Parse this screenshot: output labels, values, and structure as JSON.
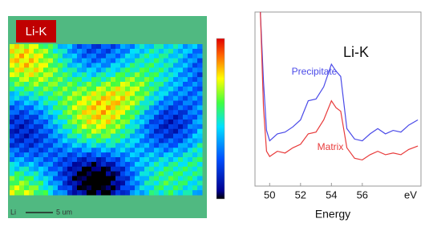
{
  "map": {
    "label": "Li-K",
    "scale_element": "Li",
    "scale_text": "5 um"
  },
  "chart_data": {
    "type": "line",
    "title": "Li-K",
    "xlabel": "Energy",
    "x_unit": "eV",
    "x": [
      49.4,
      49.6,
      49.8,
      50,
      50.5,
      51,
      51.5,
      52,
      52.5,
      53,
      53.5,
      54,
      54.3,
      54.6,
      55,
      55.5,
      56,
      56.5,
      57,
      57.5,
      58,
      58.5,
      59,
      59.6
    ],
    "series": [
      {
        "name": "Precipitate",
        "color": "#4a4ae8",
        "values": [
          100,
          60,
          32,
          26,
          30,
          31,
          34,
          38,
          49,
          50,
          57,
          70,
          66,
          63,
          33,
          27,
          26,
          30,
          33,
          30,
          32,
          31,
          35,
          38
        ]
      },
      {
        "name": "Matrix",
        "color": "#e83a3a",
        "values": [
          100,
          45,
          20,
          17,
          20,
          19,
          22,
          24,
          30,
          31,
          38,
          49,
          45,
          43,
          22,
          16,
          15,
          18,
          20,
          18,
          19,
          18,
          21,
          23
        ]
      }
    ],
    "xlim": [
      49.05,
      59.8
    ],
    "xticks": [
      50,
      52,
      54,
      56
    ],
    "ylim": [
      0,
      100
    ]
  }
}
